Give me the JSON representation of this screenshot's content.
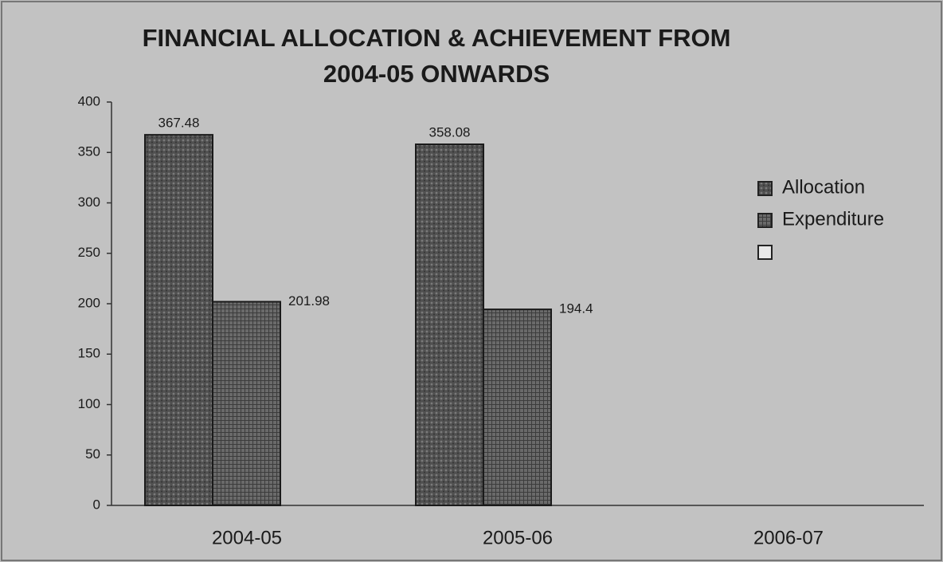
{
  "chart_data": {
    "type": "bar",
    "title": [
      "FINANCIAL ALLOCATION & ACHIEVEMENT FROM",
      "2004-05 ONWARDS"
    ],
    "categories": [
      "2004-05",
      "2005-06",
      "2006-07"
    ],
    "series": [
      {
        "name": "Allocation",
        "color": "#555555",
        "values": [
          367.48,
          358.08,
          null
        ]
      },
      {
        "name": "Expenditure",
        "color": "#6e6e6e",
        "values": [
          201.98,
          194.4,
          null
        ]
      }
    ],
    "ylim": [
      0,
      400
    ],
    "yticks": [
      0,
      50,
      100,
      150,
      200,
      250,
      300,
      350,
      400
    ],
    "legend": "right"
  }
}
